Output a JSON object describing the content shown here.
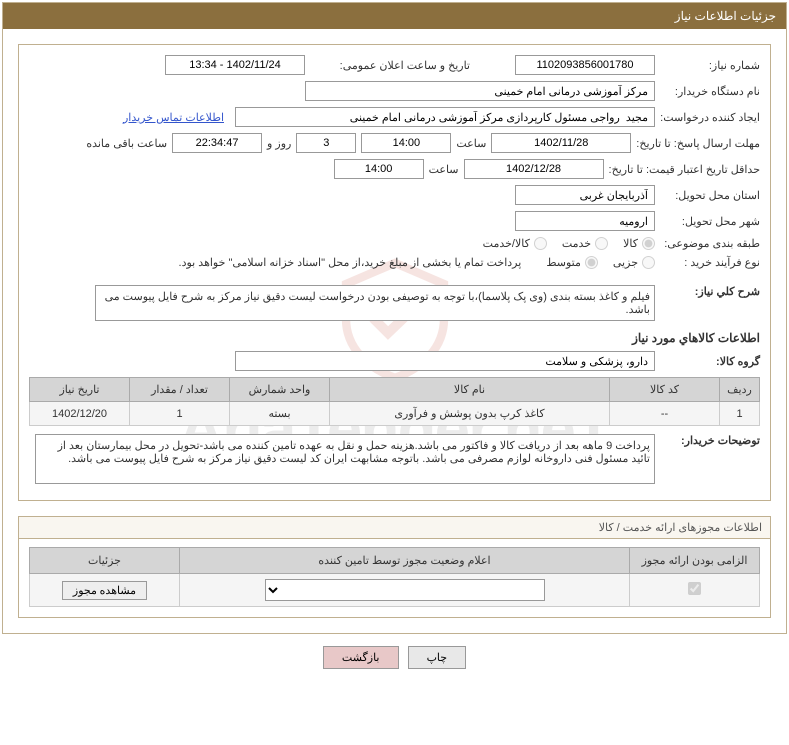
{
  "header": {
    "title": "جزئیات اطلاعات نیاز"
  },
  "fields": {
    "need_no_label": "شماره نیاز:",
    "need_no": "1102093856001780",
    "announce_label": "تاریخ و ساعت اعلان عمومی:",
    "announce_val": "1402/11/24 - 13:34",
    "buyer_dev_label": "نام دستگاه خریدار:",
    "buyer_dev_val": "مرکز آموزشی درمانی امام خمینی",
    "requester_label": "ایجاد کننده درخواست:",
    "requester_val": "مجید  رواجی مسئول کارپردازی مرکز آموزشی درمانی امام خمینی",
    "contact_link": "اطلاعات تماس خریدار",
    "deadline_send_label": "مهلت ارسال پاسخ: تا تاریخ:",
    "deadline_date": "1402/11/28",
    "time_label": "ساعت",
    "deadline_time": "14:00",
    "days_remain": "3",
    "days_word": "روز و",
    "time_remain": "22:34:47",
    "remain_word": "ساعت باقی مانده",
    "validity_label": "حداقل تاریخ اعتبار قیمت: تا تاریخ:",
    "validity_date": "1402/12/28",
    "validity_time": "14:00",
    "province_label": "استان محل تحویل:",
    "province_val": "آذربایجان غربی",
    "city_label": "شهر محل تحویل:",
    "city_val": "ارومیه",
    "category_label": "طبقه بندی موضوعی:",
    "purchase_type_label": "نوع فرآیند خرید :",
    "purchase_note": "پرداخت تمام یا بخشی از مبلغ خرید،از محل \"اسناد خزانه اسلامی\" خواهد بود.",
    "desc_label": "شرح کلي نياز:",
    "desc_val": "فیلم و کاغذ بسته بندی (وی پک پلاسما)،با توجه به توصیفی بودن درخواست لیست دقیق نیاز مرکز به شرح فایل پیوست می باشد.",
    "goods_info_title": "اطلاعات کالاهاي مورد نياز",
    "group_label": "گروه کالا:",
    "group_val": "دارو، پزشکی و سلامت",
    "buyer_notes_label": "توضیحات خریدار:",
    "buyer_notes_val": "پرداخت  9 ماهه بعد از دریافت کالا و فاکتور می باشد.هزینه حمل و نقل به عهده تامین کننده می باشد-تحویل در محل بیمارستان بعد از تائید مسئول فنی داروخانه لوازم مصرفی می باشد. باتوجه مشابهت ایران کد لیست دقیق نیاز مرکز به شرح فایل پیوست می باشد."
  },
  "radios": {
    "cat_opts": [
      "کالا",
      "خدمت",
      "کالا/خدمت"
    ],
    "cat_selected": 0,
    "proc_opts": [
      "جزیی",
      "متوسط"
    ],
    "proc_selected": 1
  },
  "goods_table": {
    "headers": [
      "ردیف",
      "کد کالا",
      "نام کالا",
      "واحد شمارش",
      "تعداد / مقدار",
      "تاریخ نیاز"
    ],
    "rows": [
      [
        "1",
        "--",
        "کاغذ کرپ بدون پوشش و فرآوری",
        "بسته",
        "1",
        "1402/12/20"
      ]
    ]
  },
  "permit": {
    "title": "اطلاعات مجوزهای ارائه خدمت / کالا",
    "headers": [
      "الزامی بودن ارائه مجوز",
      "اعلام وضعیت مجوز توسط تامین کننده",
      "جزئیات"
    ],
    "checkbox_checked": true,
    "select_val": "",
    "view_btn": "مشاهده مجوز"
  },
  "footer": {
    "print": "چاپ",
    "back": "بازگشت"
  },
  "watermark": "AriaTender.neT"
}
